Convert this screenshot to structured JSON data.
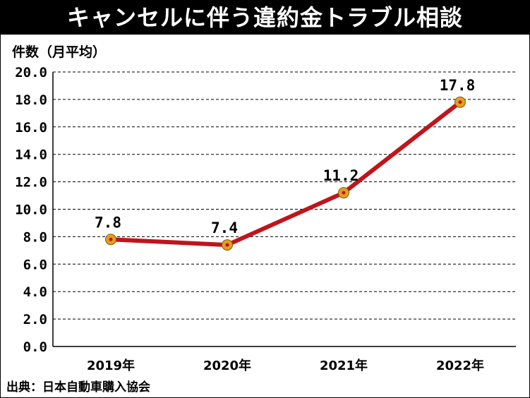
{
  "header": {
    "title": "キャンセルに伴う違約金トラブル相談"
  },
  "footer": {
    "source": "出典：日本自動車購入協会"
  },
  "chart_data": {
    "type": "line",
    "title": "キャンセルに伴う違約金トラブル相談",
    "ylabel": "件数（月平均）",
    "xlabel": "",
    "categories": [
      "2019年",
      "2020年",
      "2021年",
      "2022年"
    ],
    "series": [
      {
        "values": [
          7.8,
          7.4,
          11.2,
          17.8
        ]
      }
    ],
    "data_labels": [
      "7.8",
      "7.4",
      "11.2",
      "17.8"
    ],
    "ylim": [
      0,
      20
    ],
    "yticks": [
      "0.0",
      "2.0",
      "4.0",
      "6.0",
      "8.0",
      "10.0",
      "12.0",
      "14.0",
      "16.0",
      "18.0",
      "20.0"
    ],
    "grid": "horizontal-dashed",
    "legend": "none",
    "colors": {
      "line": "#c0141c",
      "marker_fill": "#e0a020",
      "marker_center": "#c0141c",
      "title_bg": "#000000",
      "title_text": "#ffffff"
    }
  }
}
